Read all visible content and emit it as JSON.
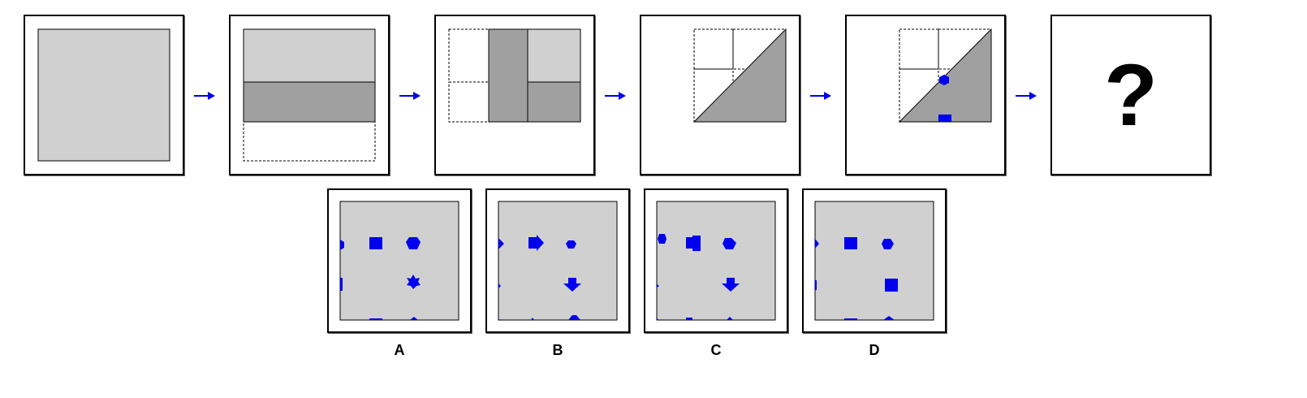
{
  "puzzle": {
    "question_mark": "?",
    "colors": {
      "paper": "#d0d0d0",
      "paper_folded": "#a0a0a0",
      "hole": "#0000ee",
      "arrow": "#0000ee",
      "outline": "#000000"
    },
    "steps": [
      {
        "name": "unfolded-square"
      },
      {
        "name": "fold-bottom-up"
      },
      {
        "name": "fold-left-over"
      },
      {
        "name": "fold-diagonal"
      },
      {
        "name": "punch-holes",
        "holes": [
          "hexagon",
          "rectangle"
        ]
      }
    ],
    "options": [
      {
        "label": "A"
      },
      {
        "label": "B"
      },
      {
        "label": "C"
      },
      {
        "label": "D"
      }
    ]
  }
}
